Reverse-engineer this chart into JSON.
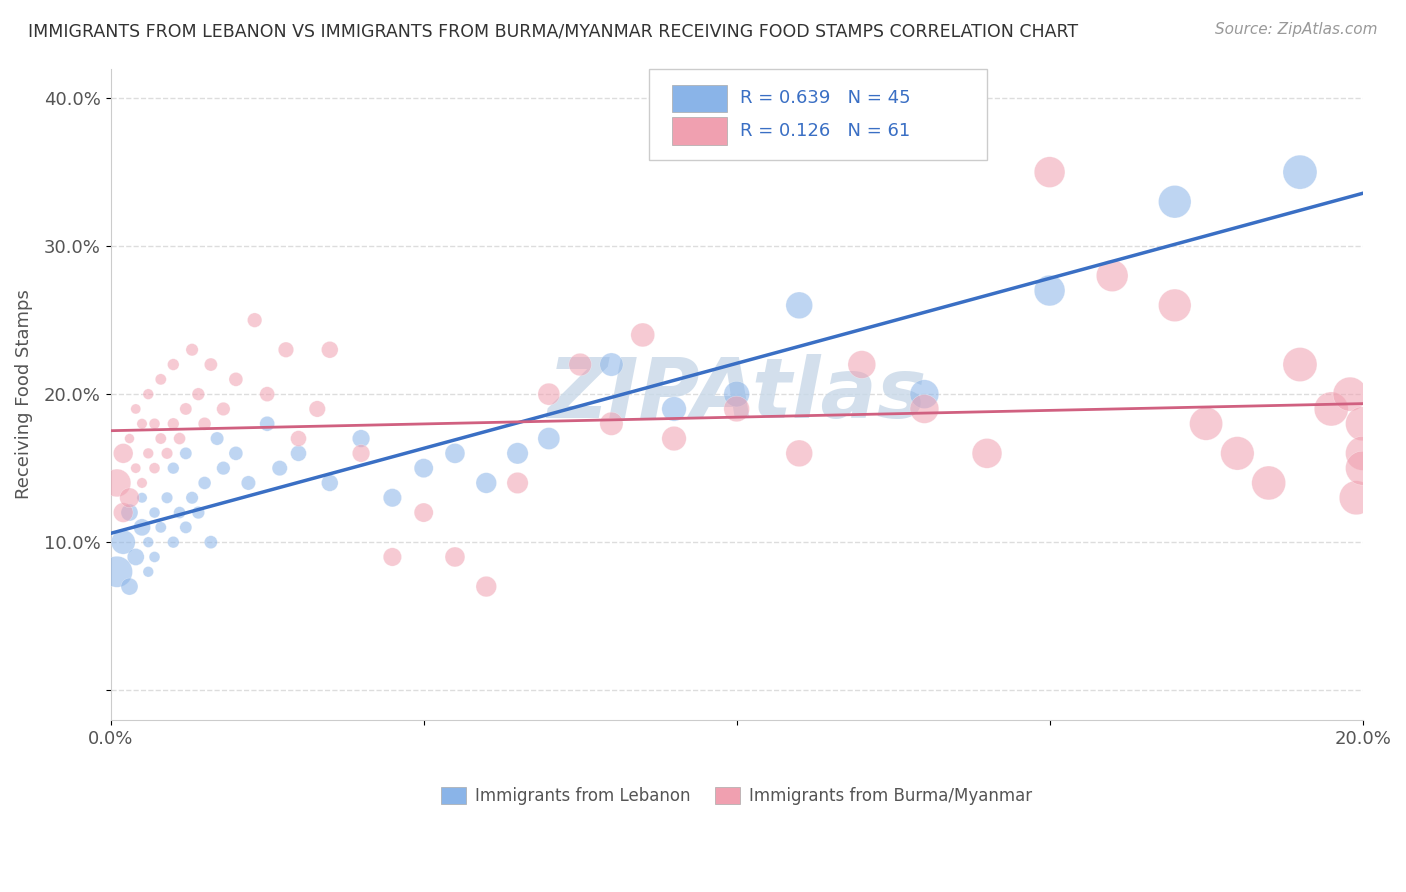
{
  "title": "IMMIGRANTS FROM LEBANON VS IMMIGRANTS FROM BURMA/MYANMAR RECEIVING FOOD STAMPS CORRELATION CHART",
  "source": "Source: ZipAtlas.com",
  "ylabel": "Receiving Food Stamps",
  "xlim": [
    0.0,
    0.2
  ],
  "ylim": [
    -0.02,
    0.42
  ],
  "legend_R1": "0.639",
  "legend_N1": "45",
  "legend_R2": "0.126",
  "legend_N2": "61",
  "blue_color": "#8ab4e8",
  "blue_line_color": "#3a6fc4",
  "pink_color": "#f0a0b0",
  "pink_line_color": "#d06080",
  "watermark": "ZIPAtlas",
  "watermark_color": "#c8d8e8",
  "blue_x": [
    0.001,
    0.002,
    0.003,
    0.003,
    0.004,
    0.005,
    0.005,
    0.006,
    0.006,
    0.007,
    0.007,
    0.008,
    0.009,
    0.01,
    0.01,
    0.011,
    0.012,
    0.012,
    0.013,
    0.014,
    0.015,
    0.016,
    0.017,
    0.018,
    0.02,
    0.022,
    0.025,
    0.027,
    0.03,
    0.035,
    0.04,
    0.045,
    0.05,
    0.055,
    0.06,
    0.065,
    0.07,
    0.08,
    0.09,
    0.1,
    0.11,
    0.13,
    0.15,
    0.17,
    0.19
  ],
  "blue_y": [
    0.08,
    0.1,
    0.12,
    0.07,
    0.09,
    0.11,
    0.13,
    0.08,
    0.1,
    0.09,
    0.12,
    0.11,
    0.13,
    0.1,
    0.15,
    0.12,
    0.16,
    0.11,
    0.13,
    0.12,
    0.14,
    0.1,
    0.17,
    0.15,
    0.16,
    0.14,
    0.18,
    0.15,
    0.16,
    0.14,
    0.17,
    0.13,
    0.15,
    0.16,
    0.14,
    0.16,
    0.17,
    0.22,
    0.19,
    0.2,
    0.26,
    0.2,
    0.27,
    0.33,
    0.35
  ],
  "pink_x": [
    0.001,
    0.002,
    0.002,
    0.003,
    0.003,
    0.004,
    0.004,
    0.005,
    0.005,
    0.006,
    0.006,
    0.007,
    0.007,
    0.008,
    0.008,
    0.009,
    0.01,
    0.01,
    0.011,
    0.012,
    0.013,
    0.014,
    0.015,
    0.016,
    0.018,
    0.02,
    0.023,
    0.025,
    0.028,
    0.03,
    0.033,
    0.035,
    0.04,
    0.045,
    0.05,
    0.055,
    0.06,
    0.065,
    0.07,
    0.075,
    0.08,
    0.085,
    0.09,
    0.1,
    0.11,
    0.12,
    0.13,
    0.14,
    0.15,
    0.16,
    0.17,
    0.175,
    0.18,
    0.185,
    0.19,
    0.195,
    0.198,
    0.199,
    0.2,
    0.2,
    0.2
  ],
  "pink_y": [
    0.14,
    0.12,
    0.16,
    0.13,
    0.17,
    0.15,
    0.19,
    0.14,
    0.18,
    0.16,
    0.2,
    0.15,
    0.18,
    0.17,
    0.21,
    0.16,
    0.18,
    0.22,
    0.17,
    0.19,
    0.23,
    0.2,
    0.18,
    0.22,
    0.19,
    0.21,
    0.25,
    0.2,
    0.23,
    0.17,
    0.19,
    0.23,
    0.16,
    0.09,
    0.12,
    0.09,
    0.07,
    0.14,
    0.2,
    0.22,
    0.18,
    0.24,
    0.17,
    0.19,
    0.16,
    0.22,
    0.19,
    0.16,
    0.35,
    0.28,
    0.26,
    0.18,
    0.16,
    0.14,
    0.22,
    0.19,
    0.2,
    0.13,
    0.18,
    0.16,
    0.15
  ]
}
